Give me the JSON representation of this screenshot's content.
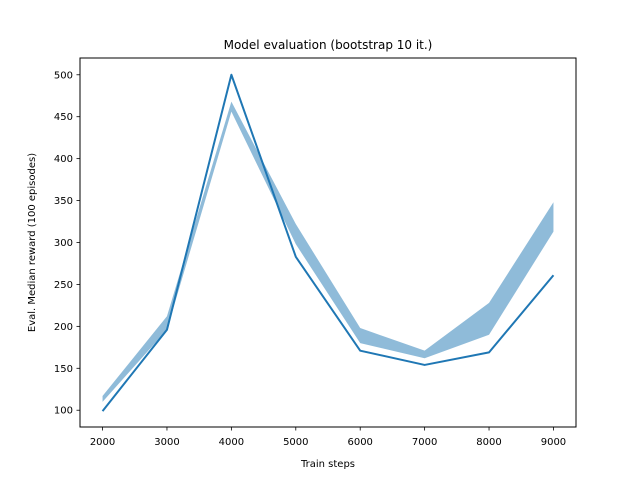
{
  "chart_data": {
    "type": "line",
    "title": "Model evaluation (bootstrap 10 it.)",
    "xlabel": "Train steps",
    "ylabel": "Eval. Median reward (100 episodes)",
    "xlim": [
      1650,
      9350
    ],
    "ylim": [
      80,
      520
    ],
    "xticks": [
      2000,
      3000,
      4000,
      5000,
      6000,
      7000,
      8000,
      9000
    ],
    "yticks": [
      100,
      150,
      200,
      250,
      300,
      350,
      400,
      450,
      500
    ],
    "grid": false,
    "legend": "none",
    "series": [
      {
        "type": "line",
        "color": "#1f77b4",
        "x": [
          2000,
          3000,
          4000,
          5000,
          6000,
          7000,
          8000,
          9000
        ],
        "y": [
          99,
          196,
          500,
          283,
          171,
          154,
          169,
          261
        ]
      }
    ],
    "bands": [
      {
        "type": "area",
        "color": "#1f77b4",
        "opacity": 0.5,
        "x": [
          2000,
          3000,
          4000,
          5000,
          6000,
          7000,
          8000,
          9000
        ],
        "lower": [
          110,
          196,
          456,
          298,
          180,
          162,
          190,
          313
        ],
        "upper": [
          117,
          212,
          468,
          322,
          198,
          171,
          228,
          348
        ]
      }
    ]
  }
}
